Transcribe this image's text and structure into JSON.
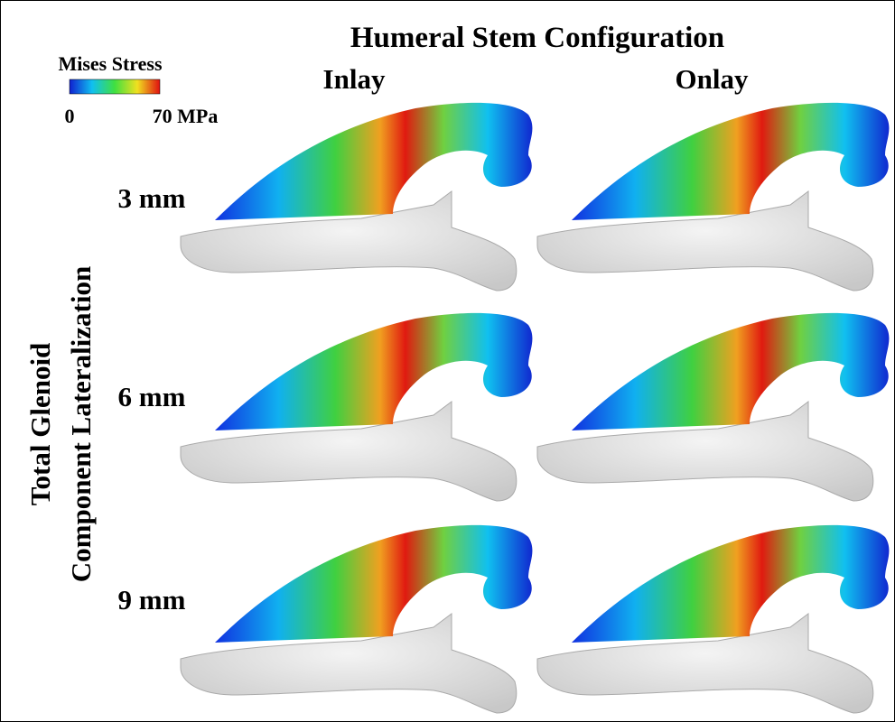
{
  "header": {
    "title": "Humeral Stem Configuration"
  },
  "columns": [
    "Inlay",
    "Onlay"
  ],
  "rows": [
    "3 mm",
    "6 mm",
    "9 mm"
  ],
  "side_label": [
    "Total Glenoid",
    "Component Lateralization"
  ],
  "legend": {
    "title": "Mises Stress",
    "min": "0",
    "max": "70 MPa"
  }
}
